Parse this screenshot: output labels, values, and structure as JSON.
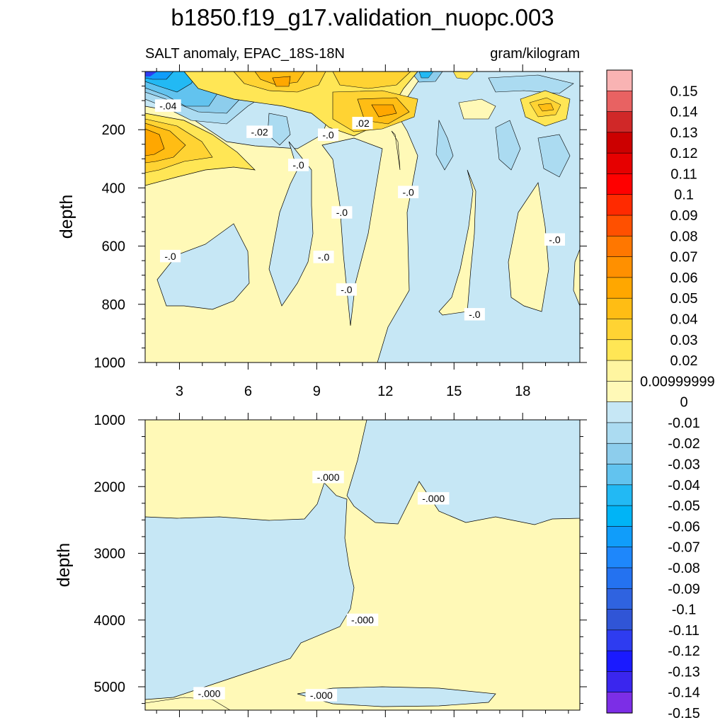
{
  "figure_title": "b1850.f19_g17.validation_nuopc.003",
  "chart_data": [
    {
      "type": "heatmap",
      "panel": "upper",
      "title_left": "SALT anomaly, EPAC_18S-18N",
      "title_right": "gram/kilogram",
      "xlabel": "",
      "ylabel": "depth",
      "x_ticks": [
        "3",
        "6",
        "9",
        "12",
        "15",
        "18"
      ],
      "x_tick_values": [
        3,
        6,
        9,
        12,
        15,
        18
      ],
      "xlim": [
        1.5,
        20.5
      ],
      "y_ticks": [
        "200",
        "400",
        "600",
        "800",
        "1000"
      ],
      "y_tick_values": [
        200,
        400,
        600,
        800,
        1000
      ],
      "ylim": [
        0,
        1000
      ],
      "contour_labels": [
        {
          "text": "-.04",
          "x": 2.5,
          "y": 118
        },
        {
          "text": "-.02",
          "x": 6.5,
          "y": 208
        },
        {
          "text": "-.0",
          "x": 9.5,
          "y": 218
        },
        {
          "text": ".02",
          "x": 11.0,
          "y": 178
        },
        {
          "text": "-.0",
          "x": 8.2,
          "y": 322
        },
        {
          "text": "-.0",
          "x": 13.0,
          "y": 415
        },
        {
          "text": "-.0",
          "x": 10.1,
          "y": 485
        },
        {
          "text": "-.0",
          "x": 2.6,
          "y": 635
        },
        {
          "text": "-.0",
          "x": 9.3,
          "y": 638
        },
        {
          "text": "-.0",
          "x": 10.3,
          "y": 750
        },
        {
          "text": "-.0",
          "x": 19.4,
          "y": 578
        },
        {
          "text": "-.0",
          "x": 15.9,
          "y": 835
        }
      ]
    },
    {
      "type": "heatmap",
      "panel": "lower",
      "xlabel": "",
      "ylabel": "depth",
      "y_ticks": [
        "1000",
        "2000",
        "3000",
        "4000",
        "5000"
      ],
      "y_tick_values": [
        1000,
        2000,
        3000,
        4000,
        5000
      ],
      "ylim": [
        1000,
        5350
      ],
      "xlim": [
        1.5,
        20.5
      ],
      "contour_labels": [
        {
          "text": "-.000",
          "x": 9.5,
          "y": 1860
        },
        {
          "text": "-.000",
          "x": 14.1,
          "y": 2180
        },
        {
          "text": "-.000",
          "x": 11.0,
          "y": 4000
        },
        {
          "text": "-.000",
          "x": 4.3,
          "y": 5100
        },
        {
          "text": "-.000",
          "x": 9.2,
          "y": 5130
        }
      ]
    },
    {
      "type": "colorbar",
      "labels": [
        "0.15",
        "0.14",
        "0.13",
        "0.12",
        "0.11",
        "0.1",
        "0.09",
        "0.08",
        "0.07",
        "0.06",
        "0.05",
        "0.04",
        "0.03",
        "0.02",
        "0.00999999",
        "0",
        "-0.01",
        "-0.02",
        "-0.03",
        "-0.04",
        "-0.05",
        "-0.06",
        "-0.07",
        "-0.08",
        "-0.09",
        "-0.1",
        "-0.11",
        "-0.12",
        "-0.13",
        "-0.14",
        "-0.15"
      ],
      "colors": [
        "#f9b3b3",
        "#e86262",
        "#d02828",
        "#cc0000",
        "#e60000",
        "#ff0000",
        "#ff2a00",
        "#ff5000",
        "#ff7700",
        "#ff9000",
        "#ffa700",
        "#ffbd14",
        "#ffd333",
        "#ffe655",
        "#fff5a0",
        "#fff9b7",
        "#c6e7f5",
        "#abdbf1",
        "#8dcdec",
        "#62c3ef",
        "#22b9f4",
        "#00b4f6",
        "#109dfa",
        "#1e87fb",
        "#2472f0",
        "#2f63e0",
        "#3055d6",
        "#2e3cf0",
        "#1a1aff",
        "#3a26ee",
        "#7c2ee6"
      ]
    }
  ]
}
